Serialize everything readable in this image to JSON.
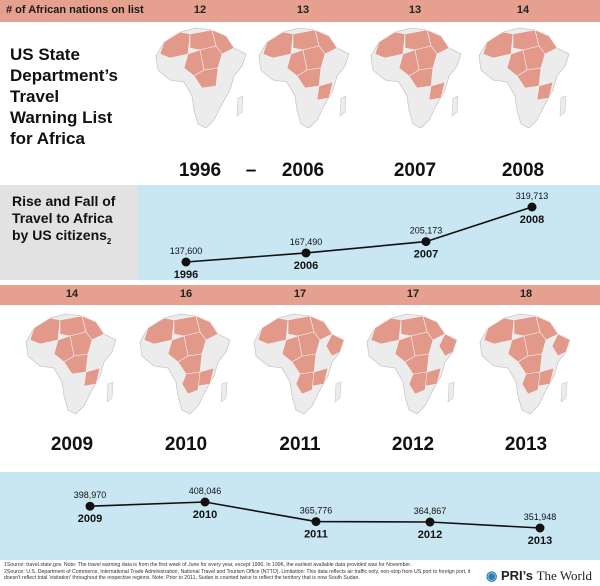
{
  "header_label": "# of African nations on list",
  "title": "US State Department’s Travel Warning List for Africa",
  "subtitle": "Rise and Fall of Travel to Africa by US citizens",
  "subtitle_note": "2",
  "dash": "–",
  "top_row": [
    {
      "year": "1996",
      "count": "12"
    },
    {
      "year": "2006",
      "count": "13"
    },
    {
      "year": "2007",
      "count": "13"
    },
    {
      "year": "2008",
      "count": "14"
    }
  ],
  "bottom_row": [
    {
      "year": "2009",
      "count": "14"
    },
    {
      "year": "2010",
      "count": "16"
    },
    {
      "year": "2011",
      "count": "17"
    },
    {
      "year": "2012",
      "count": "17"
    },
    {
      "year": "2013",
      "count": "18"
    }
  ],
  "chart_data": [
    {
      "type": "line",
      "title": "Rise and Fall of Travel to Africa by US citizens",
      "x": [
        "1996",
        "2006",
        "2007",
        "2008"
      ],
      "values": [
        137600,
        167490,
        205173,
        319713
      ],
      "value_labels": [
        "137,600",
        "167,490",
        "205,173",
        "319,713"
      ]
    },
    {
      "type": "line",
      "x": [
        "2009",
        "2010",
        "2011",
        "2012",
        "2013"
      ],
      "values": [
        398970,
        408046,
        365776,
        364867,
        351948
      ],
      "value_labels": [
        "398,970",
        "408,046",
        "365,776",
        "364,867",
        "351,948"
      ]
    },
    {
      "type": "table",
      "title": "# of African nations on list",
      "categories": [
        "1996",
        "2006",
        "2007",
        "2008",
        "2009",
        "2010",
        "2011",
        "2012",
        "2013"
      ],
      "values": [
        12,
        13,
        13,
        14,
        14,
        16,
        17,
        17,
        18
      ]
    }
  ],
  "footnotes": [
    "1Source: travel.state.gov. Note: The travel warning data is from the first week of June for every year, except 1996. In 1996, the earliest available data provided was for November.",
    "2Source: U.S. Department of Commerce, International Trade Administration, National Travel and Tourism Office (NTTO). Limitation: This data reflects air traffic only, non-stop from US port to foreign port, it doesn't reflect total 'visitation' throughout the respective regions. Note: Prior to 2011, Sudan is counted twice to reflect the territory that is now South Sudan."
  ],
  "brand": {
    "prefix": "PRI’s",
    "name": "The World"
  },
  "colors": {
    "salmon": "#e6a08f",
    "blue": "#c9e6f3",
    "gray": "#e2e2e2",
    "map_fill": "#ececec",
    "map_highlight": "#e3998a"
  }
}
